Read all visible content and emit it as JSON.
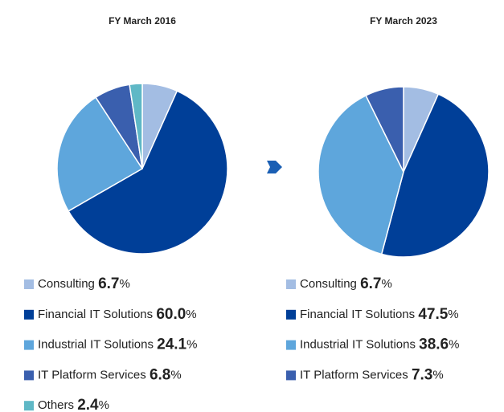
{
  "chart_data": [
    {
      "type": "pie",
      "title": "FY March 2016",
      "categories": [
        "Consulting",
        "Financial IT Solutions",
        "Industrial IT Solutions",
        "IT Platform Services",
        "Others"
      ],
      "values": [
        6.7,
        60.0,
        24.1,
        6.8,
        2.4
      ],
      "value_labels": [
        "6.7",
        "60.0",
        "24.1",
        "6.8",
        "2.4"
      ],
      "unit": "%",
      "colors": [
        "#a3bde3",
        "#003f98",
        "#5ea6dc",
        "#3a5fae",
        "#5fb8c6"
      ]
    },
    {
      "type": "pie",
      "title": "FY March 2023",
      "categories": [
        "Consulting",
        "Financial IT Solutions",
        "Industrial IT Solutions",
        "IT Platform Services"
      ],
      "values": [
        6.7,
        47.5,
        38.6,
        7.3
      ],
      "value_labels": [
        "6.7",
        "47.5",
        "38.6",
        "7.3"
      ],
      "unit": "%",
      "colors": [
        "#a3bde3",
        "#003f98",
        "#5ea6dc",
        "#3a5fae"
      ]
    }
  ]
}
